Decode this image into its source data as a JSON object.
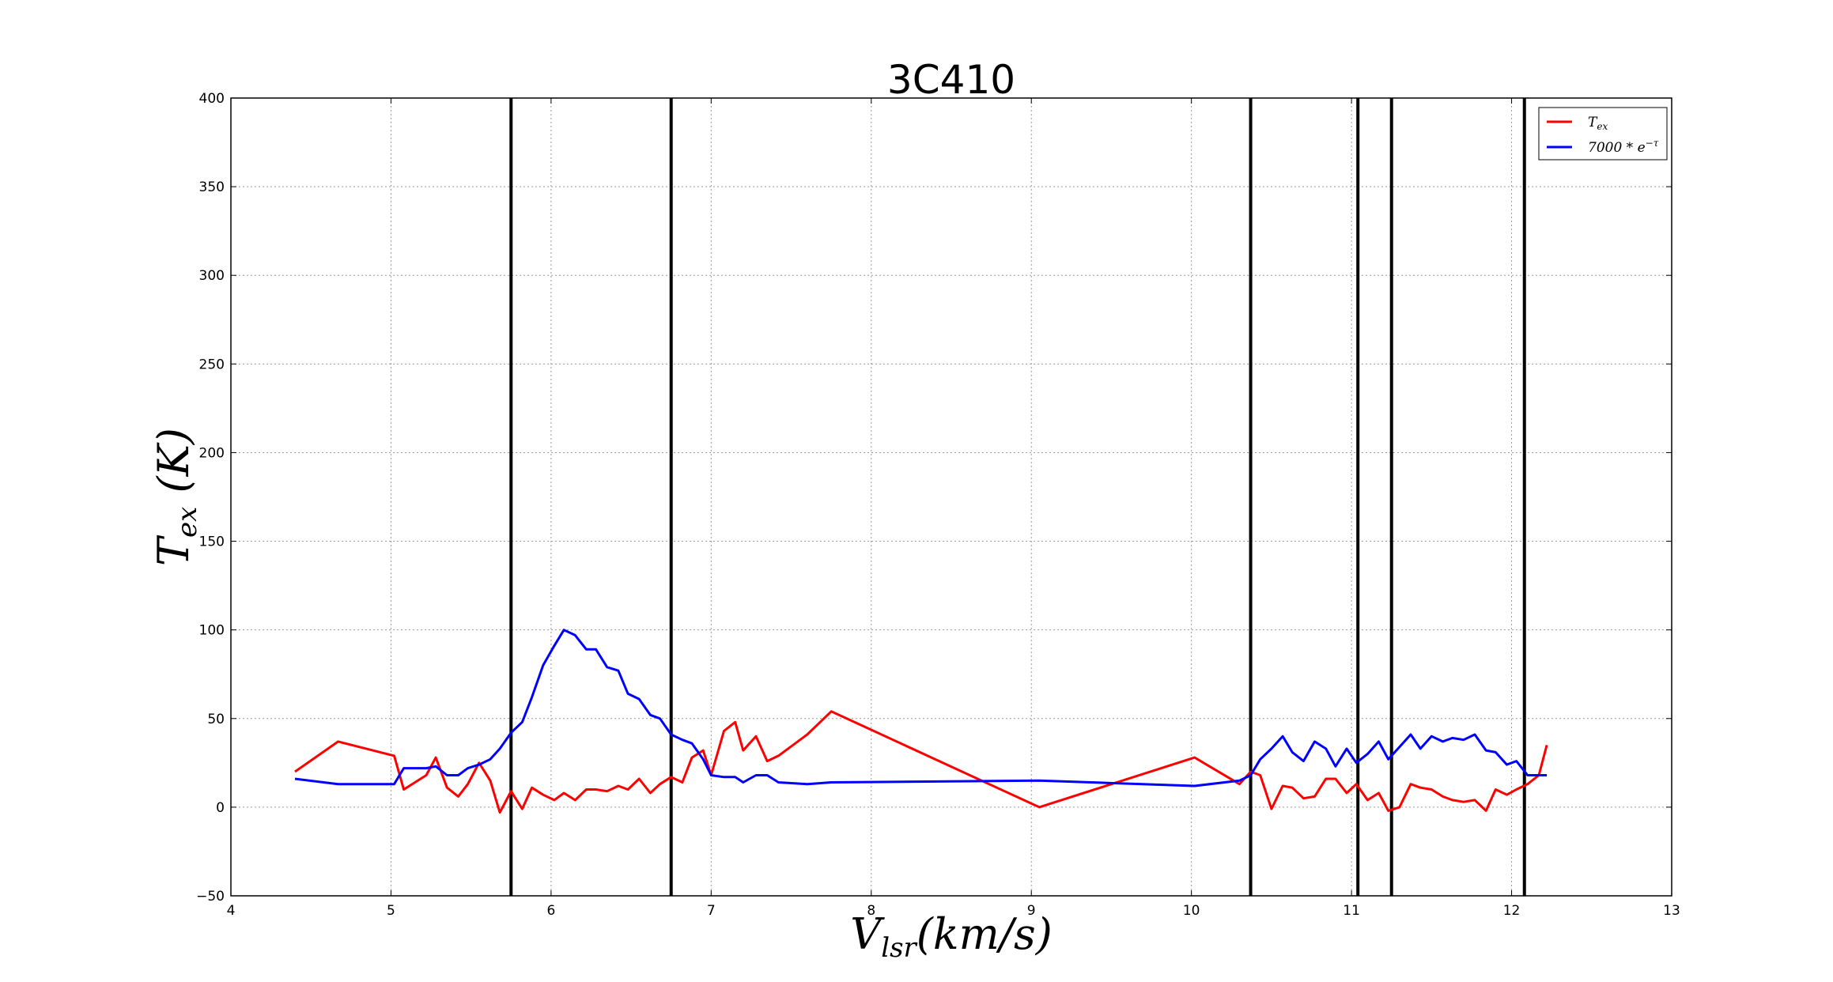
{
  "chart_data": {
    "type": "line",
    "title": "3C410",
    "xlabel": {
      "main": "V",
      "sub": "lsr",
      "rest": "(km/s)"
    },
    "ylabel": {
      "main": "T",
      "sub": "ex",
      "rest": " (K)"
    },
    "xlim": [
      4,
      13
    ],
    "ylim": [
      -50,
      400
    ],
    "xticks": [
      4,
      5,
      6,
      7,
      8,
      9,
      10,
      11,
      12,
      13
    ],
    "yticks": [
      -50,
      0,
      50,
      100,
      150,
      200,
      250,
      300,
      350,
      400
    ],
    "xtick_labels": [
      "4",
      "5",
      "6",
      "7",
      "8",
      "9",
      "10",
      "11",
      "12",
      "13"
    ],
    "ytick_labels": [
      "−50",
      "0",
      "50",
      "100",
      "150",
      "200",
      "250",
      "300",
      "350",
      "400"
    ],
    "grid": true,
    "legend_position": "top-right",
    "vlines": [
      5.75,
      6.75,
      10.37,
      11.04,
      11.25,
      12.08
    ],
    "series": [
      {
        "name": {
          "main": "T",
          "sub": "ex",
          "sup": ""
        },
        "color": "#ff0000",
        "x": [
          4.4,
          4.67,
          5.02,
          5.08,
          5.22,
          5.28,
          5.35,
          5.42,
          5.48,
          5.55,
          5.62,
          5.68,
          5.75,
          5.82,
          5.88,
          5.95,
          6.02,
          6.08,
          6.15,
          6.22,
          6.28,
          6.35,
          6.42,
          6.48,
          6.55,
          6.62,
          6.68,
          6.75,
          6.82,
          6.88,
          6.95,
          7.0,
          7.08,
          7.15,
          7.2,
          7.28,
          7.35,
          7.42,
          7.6,
          7.75,
          9.05,
          10.02,
          10.3,
          10.37,
          10.43,
          10.5,
          10.57,
          10.63,
          10.7,
          10.77,
          10.84,
          10.9,
          10.97,
          11.03,
          11.1,
          11.17,
          11.23,
          11.3,
          11.37,
          11.43,
          11.5,
          11.57,
          11.63,
          11.7,
          11.77,
          11.84,
          11.9,
          11.97,
          12.03,
          12.1,
          12.17,
          12.22
        ],
        "values": [
          20,
          37,
          29,
          10,
          18,
          28,
          11,
          6,
          13,
          25,
          15,
          -3,
          9,
          -1,
          11,
          7,
          4,
          8,
          4,
          10,
          10,
          9,
          12,
          10,
          16,
          8,
          13,
          17,
          14,
          28,
          32,
          18,
          43,
          48,
          32,
          40,
          26,
          29,
          41,
          54,
          0,
          28,
          13,
          20,
          18,
          -1,
          12,
          11,
          5,
          6,
          16,
          16,
          8,
          13,
          4,
          8,
          -2,
          0,
          13,
          11,
          10,
          6,
          4,
          3,
          4,
          -2,
          10,
          7,
          10,
          13,
          18,
          35
        ]
      },
      {
        "name": {
          "main": "7000 * e",
          "sub": "",
          "sup": "−τ"
        },
        "color": "#0000ff",
        "x": [
          4.4,
          4.67,
          5.02,
          5.08,
          5.22,
          5.28,
          5.35,
          5.42,
          5.48,
          5.55,
          5.62,
          5.68,
          5.75,
          5.82,
          5.88,
          5.95,
          6.02,
          6.08,
          6.15,
          6.22,
          6.28,
          6.35,
          6.42,
          6.48,
          6.55,
          6.62,
          6.68,
          6.75,
          6.82,
          6.88,
          6.95,
          7.0,
          7.08,
          7.15,
          7.2,
          7.28,
          7.35,
          7.42,
          7.6,
          7.75,
          9.05,
          10.02,
          10.3,
          10.37,
          10.43,
          10.5,
          10.57,
          10.63,
          10.7,
          10.77,
          10.84,
          10.9,
          10.97,
          11.03,
          11.1,
          11.17,
          11.23,
          11.3,
          11.37,
          11.43,
          11.5,
          11.57,
          11.63,
          11.7,
          11.77,
          11.84,
          11.9,
          11.97,
          12.03,
          12.1,
          12.17,
          12.22
        ],
        "values": [
          16,
          13,
          13,
          22,
          22,
          23,
          18,
          18,
          22,
          24,
          27,
          33,
          42,
          48,
          62,
          80,
          91,
          100,
          97,
          89,
          89,
          79,
          77,
          64,
          61,
          52,
          50,
          41,
          38,
          36,
          27,
          18,
          17,
          17,
          14,
          18,
          18,
          14,
          13,
          14,
          15,
          12,
          15,
          18,
          27,
          33,
          40,
          31,
          26,
          37,
          33,
          23,
          33,
          25,
          30,
          37,
          27,
          34,
          41,
          33,
          40,
          37,
          39,
          38,
          41,
          32,
          31,
          24,
          26,
          18,
          18,
          18
        ]
      }
    ]
  }
}
